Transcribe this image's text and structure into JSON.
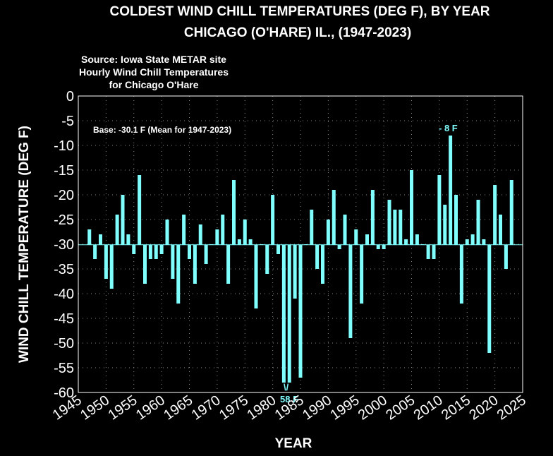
{
  "chart_data": {
    "type": "bar",
    "title": "COLDEST WIND CHILL TEMPERATURES (DEG F), BY YEAR",
    "subtitle": "CHICAGO (O'HARE) IL., (1947-2023)",
    "source_lines": [
      "Source: Iowa State METAR site",
      "Hourly Wind Chill Temperatures",
      "for Chicago O'Hare"
    ],
    "base_label": "Base: -30.1 F (Mean for 1947-2023)",
    "base": -30.1,
    "max_label": "- 8 F",
    "min_label": "58 F",
    "min_marker": "\\/",
    "x_label": "YEAR",
    "y_label": "WIND CHILL TEMPERATURE (DEG F)",
    "color": "#80ffff",
    "grid": true,
    "xlim": [
      1945,
      2025
    ],
    "xticks": [
      1945,
      1950,
      1955,
      1960,
      1965,
      1970,
      1975,
      1980,
      1985,
      1990,
      1995,
      2000,
      2005,
      2010,
      2015,
      2020,
      2025
    ],
    "ylim": [
      -60,
      0
    ],
    "yticks": [
      0,
      -5,
      -10,
      -15,
      -20,
      -25,
      -30,
      -35,
      -40,
      -45,
      -50,
      -55,
      -60
    ],
    "x": [
      1947,
      1948,
      1949,
      1950,
      1951,
      1952,
      1953,
      1954,
      1955,
      1956,
      1957,
      1958,
      1959,
      1960,
      1961,
      1962,
      1963,
      1964,
      1965,
      1966,
      1967,
      1968,
      1969,
      1970,
      1971,
      1972,
      1973,
      1974,
      1975,
      1976,
      1977,
      1978,
      1979,
      1980,
      1981,
      1982,
      1983,
      1984,
      1985,
      1986,
      1987,
      1988,
      1989,
      1990,
      1991,
      1992,
      1993,
      1994,
      1995,
      1996,
      1997,
      1998,
      1999,
      2000,
      2001,
      2002,
      2003,
      2004,
      2005,
      2006,
      2007,
      2008,
      2009,
      2010,
      2011,
      2012,
      2013,
      2014,
      2015,
      2016,
      2017,
      2018,
      2019,
      2020,
      2021,
      2022,
      2023
    ],
    "values": [
      -27,
      -33,
      -28,
      -37,
      -39,
      -24,
      -20,
      -28,
      -32,
      -16,
      -38,
      -33,
      -33,
      -32,
      -25,
      -37,
      -42,
      -24,
      -33,
      -38,
      -26,
      -34,
      -30,
      -27,
      -24,
      -38,
      -17,
      -29,
      -25,
      -29,
      -43,
      -30,
      -36,
      -20,
      -32,
      -58,
      -58,
      -41,
      -57,
      -30,
      -23,
      -35,
      -38,
      -25,
      -19,
      -31,
      -24,
      -49,
      -27,
      -42,
      -28,
      -19,
      -31,
      -31,
      -21,
      -23,
      -23,
      -29,
      -15,
      -28,
      -30,
      -33,
      -33,
      -16,
      -22,
      -8,
      -20,
      -42,
      -29,
      -28,
      -21,
      -29,
      -52,
      -18,
      -24,
      -35,
      -17
    ]
  }
}
